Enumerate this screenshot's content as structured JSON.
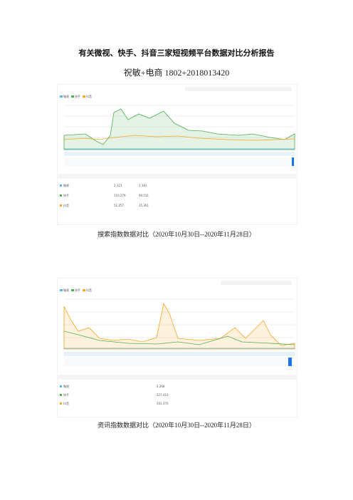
{
  "header": {
    "title": "有关微视、快手、抖音三家短视频平台数据对比分析报告",
    "subtitle": "祝敏+电商 1802+2018013420"
  },
  "figures": [
    {
      "caption": "搜索指数数据对比（2020年10月30日--2020年11月28日）",
      "legend": [
        "微视",
        "快手",
        "抖音"
      ],
      "table": {
        "rows": [
          [
            "微视",
            "2,121",
            "2,181"
          ],
          [
            "快手",
            "110,279",
            "90,511"
          ],
          [
            "抖音",
            "51,257",
            "35,361"
          ]
        ]
      }
    },
    {
      "caption": "资讯指数数据对比（2020年10月30日--2020年11月28日）",
      "legend": [
        "微视",
        "快手",
        "抖音"
      ],
      "table": {
        "rows": [
          [
            "微视",
            "2,268"
          ],
          [
            "快手",
            "227,410"
          ],
          [
            "抖音",
            "502,370"
          ]
        ]
      }
    }
  ]
}
